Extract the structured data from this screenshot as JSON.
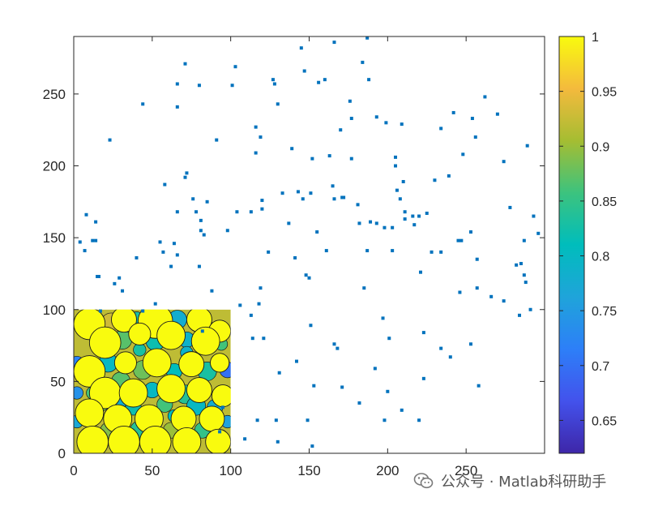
{
  "chart_data": {
    "type": "scatter",
    "xlim": [
      0,
      300
    ],
    "ylim": [
      0,
      290
    ],
    "x_ticks": [
      "0",
      "50",
      "100",
      "150",
      "200",
      "250"
    ],
    "y_ticks": [
      "0",
      "50",
      "100",
      "150",
      "200",
      "250"
    ],
    "grid": false,
    "point_color": "#0072BD",
    "points": [
      [
        152,
        5
      ],
      [
        130,
        8
      ],
      [
        109,
        10
      ],
      [
        93,
        15
      ],
      [
        117,
        23
      ],
      [
        129,
        23
      ],
      [
        149,
        23
      ],
      [
        198,
        23
      ],
      [
        220,
        23
      ],
      [
        209,
        30
      ],
      [
        95,
        32
      ],
      [
        182,
        35
      ],
      [
        200,
        43
      ],
      [
        171,
        46
      ],
      [
        153,
        47
      ],
      [
        223,
        52
      ],
      [
        131,
        56
      ],
      [
        192,
        59
      ],
      [
        258,
        47
      ],
      [
        240,
        67
      ],
      [
        142,
        64
      ],
      [
        234,
        73
      ],
      [
        253,
        76
      ],
      [
        166,
        76
      ],
      [
        168,
        73
      ],
      [
        223,
        84
      ],
      [
        121,
        80
      ],
      [
        114,
        80
      ],
      [
        201,
        80
      ],
      [
        197,
        94
      ],
      [
        151,
        89
      ],
      [
        113,
        96
      ],
      [
        44,
        99
      ],
      [
        17,
        99
      ],
      [
        82,
        85
      ],
      [
        106,
        103
      ],
      [
        52,
        104
      ],
      [
        118,
        104
      ],
      [
        119,
        115
      ],
      [
        88,
        113
      ],
      [
        31,
        113
      ],
      [
        26,
        118
      ],
      [
        16,
        123
      ],
      [
        29,
        122
      ],
      [
        185,
        115
      ],
      [
        257,
        115
      ],
      [
        246,
        112
      ],
      [
        266,
        109
      ],
      [
        221,
        126
      ],
      [
        274,
        106
      ],
      [
        291,
        100
      ],
      [
        284,
        96
      ],
      [
        287,
        124
      ],
      [
        288,
        119
      ],
      [
        282,
        131
      ],
      [
        285,
        132
      ],
      [
        161,
        141
      ],
      [
        148,
        124
      ],
      [
        150,
        122
      ],
      [
        124,
        140
      ],
      [
        141,
        136
      ],
      [
        187,
        141
      ],
      [
        203,
        141
      ],
      [
        234,
        140
      ],
      [
        228,
        140
      ],
      [
        257,
        135
      ],
      [
        12,
        148
      ],
      [
        14,
        148
      ],
      [
        4,
        147
      ],
      [
        7,
        141
      ],
      [
        55,
        147
      ],
      [
        57,
        140
      ],
      [
        62,
        130
      ],
      [
        66,
        138
      ],
      [
        80,
        130
      ],
      [
        64,
        146
      ],
      [
        98,
        155
      ],
      [
        113,
        168
      ],
      [
        120,
        170
      ],
      [
        81,
        155
      ],
      [
        81,
        162
      ],
      [
        83,
        152
      ],
      [
        78,
        168
      ],
      [
        66,
        168
      ],
      [
        76,
        177
      ],
      [
        85,
        175
      ],
      [
        40,
        136
      ],
      [
        15,
        123
      ],
      [
        137,
        160
      ],
      [
        155,
        154
      ],
      [
        182,
        160
      ],
      [
        189,
        161
      ],
      [
        193,
        160
      ],
      [
        198,
        157
      ],
      [
        203,
        157
      ],
      [
        211,
        163
      ],
      [
        217,
        159
      ],
      [
        220,
        165
      ],
      [
        253,
        154
      ],
      [
        245,
        148
      ],
      [
        247,
        148
      ],
      [
        287,
        148
      ],
      [
        293,
        165
      ],
      [
        296,
        153
      ],
      [
        8,
        166
      ],
      [
        14,
        161
      ],
      [
        23,
        218
      ],
      [
        44,
        243
      ],
      [
        58,
        187
      ],
      [
        66,
        241
      ],
      [
        71,
        192
      ],
      [
        72,
        195
      ],
      [
        66,
        257
      ],
      [
        71,
        271
      ],
      [
        80,
        256
      ],
      [
        91,
        218
      ],
      [
        101,
        256
      ],
      [
        103,
        269
      ],
      [
        104,
        168
      ],
      [
        116,
        209
      ],
      [
        116,
        227
      ],
      [
        119,
        220
      ],
      [
        120,
        176
      ],
      [
        128,
        257
      ],
      [
        127,
        260
      ],
      [
        130,
        243
      ],
      [
        133,
        181
      ],
      [
        139,
        212
      ],
      [
        145,
        282
      ],
      [
        147,
        266
      ],
      [
        151,
        181
      ],
      [
        152,
        205
      ],
      [
        156,
        258
      ],
      [
        160,
        260
      ],
      [
        163,
        207
      ],
      [
        165,
        186
      ],
      [
        166,
        286
      ],
      [
        170,
        225
      ],
      [
        172,
        178
      ],
      [
        177,
        205
      ],
      [
        176,
        245
      ],
      [
        177,
        233
      ],
      [
        181,
        173
      ],
      [
        184,
        272
      ],
      [
        187,
        289
      ],
      [
        188,
        260
      ],
      [
        193,
        234
      ],
      [
        199,
        230
      ],
      [
        205,
        206
      ],
      [
        206,
        183
      ],
      [
        210,
        189
      ],
      [
        208,
        177
      ],
      [
        209,
        229
      ],
      [
        216,
        165
      ],
      [
        225,
        167
      ],
      [
        230,
        190
      ],
      [
        234,
        226
      ],
      [
        239,
        193
      ],
      [
        242,
        237
      ],
      [
        248,
        208
      ],
      [
        254,
        233
      ],
      [
        256,
        220
      ],
      [
        262,
        248
      ],
      [
        270,
        236
      ],
      [
        274,
        203
      ],
      [
        278,
        171
      ],
      [
        289,
        214
      ],
      [
        143,
        182
      ],
      [
        146,
        177
      ],
      [
        166,
        177
      ],
      [
        171,
        178
      ],
      [
        211,
        168
      ],
      [
        205,
        200
      ]
    ],
    "heatmap": {
      "x_extent": [
        0,
        100
      ],
      "y_extent": [
        0,
        100
      ],
      "clim": [
        0.62,
        1
      ],
      "base_value": 0.92,
      "circles": [
        [
          10,
          90,
          10
        ],
        [
          32,
          93,
          8
        ],
        [
          52,
          92,
          11
        ],
        [
          80,
          93,
          8
        ],
        [
          93,
          85,
          7
        ],
        [
          20,
          77,
          10
        ],
        [
          42,
          83,
          7
        ],
        [
          62,
          82,
          9
        ],
        [
          84,
          78,
          9
        ],
        [
          10,
          57,
          10
        ],
        [
          33,
          63,
          7
        ],
        [
          53,
          63,
          9
        ],
        [
          75,
          62,
          8
        ],
        [
          93,
          63,
          6
        ],
        [
          20,
          42,
          10
        ],
        [
          38,
          42,
          9
        ],
        [
          62,
          45,
          9
        ],
        [
          80,
          44,
          8
        ],
        [
          95,
          40,
          7
        ],
        [
          10,
          28,
          9
        ],
        [
          28,
          24,
          9
        ],
        [
          48,
          24,
          9
        ],
        [
          70,
          24,
          8
        ],
        [
          88,
          24,
          8
        ],
        [
          12,
          8,
          10
        ],
        [
          32,
          8,
          10
        ],
        [
          52,
          8,
          10
        ],
        [
          72,
          8,
          9
        ],
        [
          92,
          8,
          8
        ]
      ],
      "blobs": [
        [
          0.93,
          24,
          90,
          7
        ],
        [
          0.83,
          40,
          93,
          5
        ],
        [
          0.78,
          66,
          93,
          6
        ],
        [
          0.84,
          86,
          86,
          5
        ],
        [
          0.87,
          31,
          79,
          6
        ],
        [
          0.82,
          52,
          78,
          6
        ],
        [
          0.79,
          72,
          79,
          5
        ],
        [
          0.86,
          94,
          76,
          4
        ],
        [
          0.8,
          22,
          63,
          6
        ],
        [
          0.88,
          44,
          58,
          6
        ],
        [
          0.81,
          64,
          57,
          5
        ],
        [
          0.83,
          85,
          57,
          6
        ],
        [
          0.87,
          30,
          50,
          6
        ],
        [
          0.8,
          50,
          44,
          5
        ],
        [
          0.84,
          71,
          41,
          6
        ],
        [
          0.78,
          90,
          32,
          5
        ],
        [
          0.88,
          18,
          35,
          5
        ],
        [
          0.82,
          38,
          32,
          5
        ],
        [
          0.86,
          58,
          34,
          5
        ],
        [
          0.8,
          78,
          33,
          6
        ],
        [
          0.89,
          22,
          16,
          5
        ],
        [
          0.84,
          42,
          16,
          6
        ],
        [
          0.9,
          62,
          16,
          5
        ],
        [
          0.85,
          82,
          16,
          5
        ],
        [
          0.72,
          2,
          62,
          5
        ],
        [
          0.74,
          2,
          42,
          4
        ],
        [
          0.7,
          98,
          58,
          5
        ],
        [
          0.76,
          98,
          22,
          4
        ],
        [
          0.83,
          42,
          72,
          4
        ],
        [
          0.79,
          72,
          70,
          4
        ],
        [
          0.86,
          12,
          42,
          4
        ],
        [
          0.78,
          30,
          36,
          4
        ],
        [
          0.81,
          64,
          26,
          4
        ],
        [
          0.84,
          94,
          12,
          4
        ],
        [
          0.77,
          2,
          22,
          4
        ]
      ]
    },
    "colorbar": {
      "clim": [
        0.62,
        1
      ],
      "tick_values": [
        0.65,
        0.7,
        0.75,
        0.8,
        0.85,
        0.9,
        0.95,
        1
      ],
      "tick_labels": [
        "0.65",
        "0.7",
        "0.75",
        "0.8",
        "0.85",
        "0.9",
        "0.95",
        "1"
      ]
    }
  },
  "watermark": {
    "text": "公众号 · Matlab科研助手",
    "icon": "wechat-icon"
  }
}
